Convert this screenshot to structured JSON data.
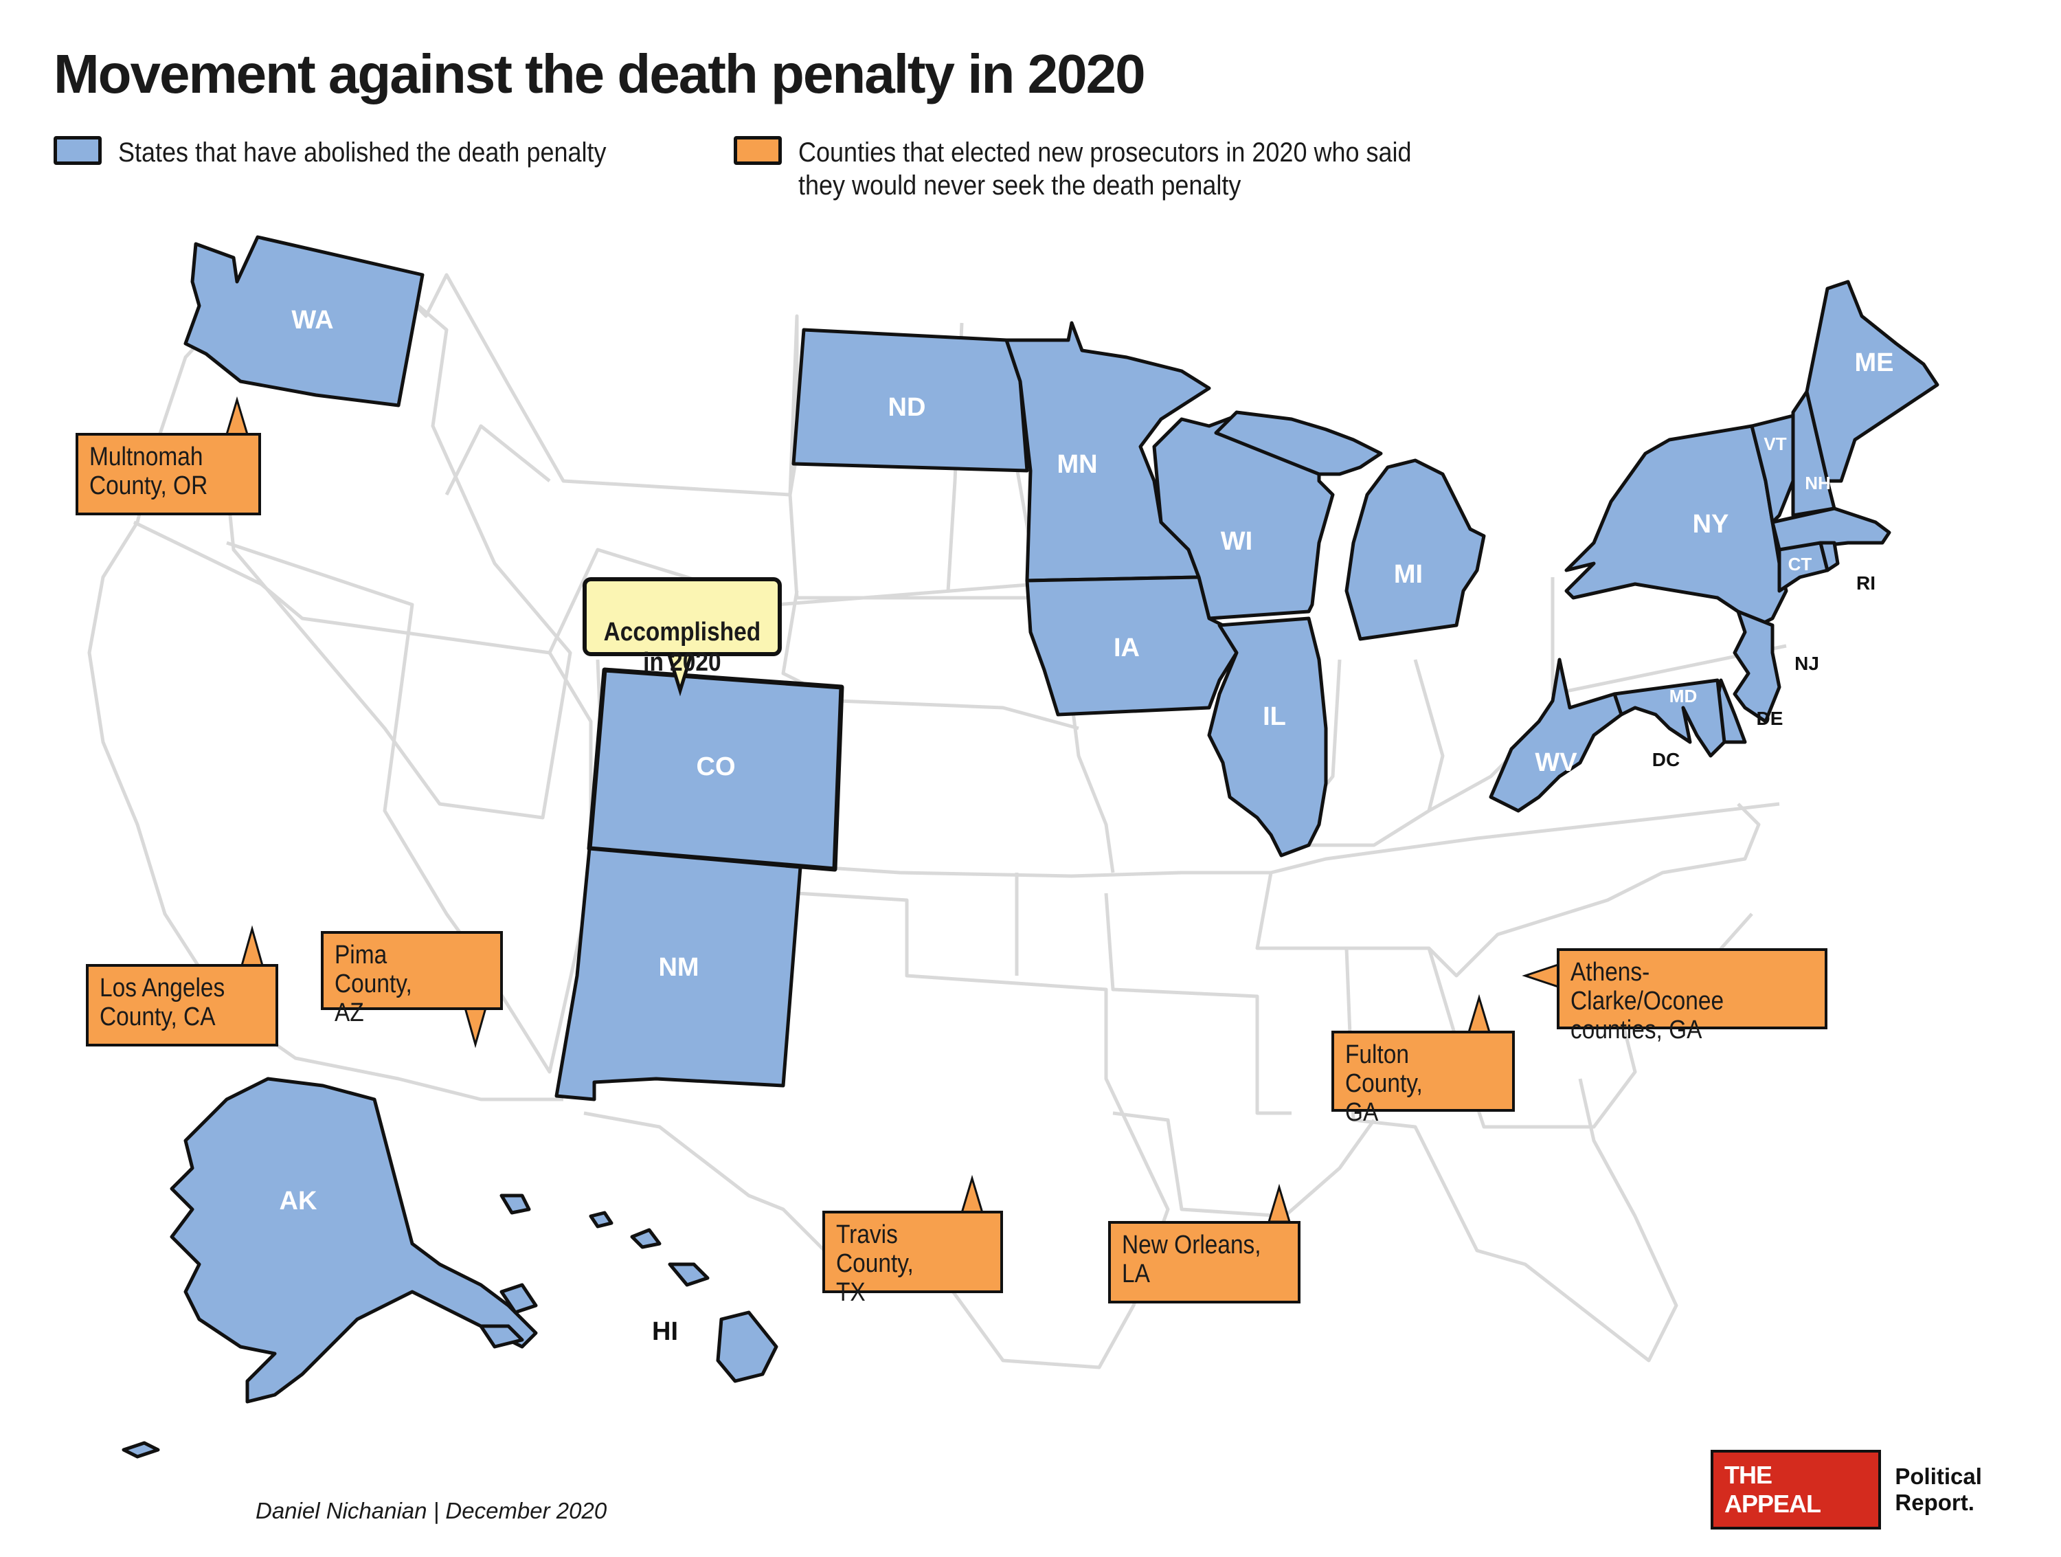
{
  "title": "Movement against the death penalty in 2020",
  "legend": {
    "abolished": {
      "label": "States that have abolished the death penalty",
      "color": "#8eb1de"
    },
    "prosecutors": {
      "label": "Counties that elected new prosecutors in 2020 who said they would never seek the death penalty",
      "color": "#f7a04d"
    }
  },
  "states_abolished": [
    "WA",
    "ND",
    "MN",
    "WI",
    "MI",
    "IA",
    "IL",
    "CO",
    "NM",
    "NY",
    "VT",
    "NH",
    "ME",
    "CT",
    "NJ",
    "MD",
    "DE",
    "WV",
    "AK",
    "HI"
  ],
  "state_labels": {
    "WA": "WA",
    "ND": "ND",
    "MN": "MN",
    "WI": "WI",
    "MI": "MI",
    "IA": "IA",
    "IL": "IL",
    "CO": "CO",
    "NM": "NM",
    "NY": "NY",
    "VT": "VT",
    "NH": "NH",
    "ME": "ME",
    "CT": "CT",
    "RI": "RI",
    "NJ": "NJ",
    "MD": "MD",
    "DE": "DE",
    "DC": "DC",
    "WV": "WV",
    "AK": "AK",
    "HI": "HI"
  },
  "accomplished": "Accomplished\nin 2020",
  "counties": [
    {
      "id": "multnomah",
      "label": "Multnomah\nCounty, OR"
    },
    {
      "id": "los-angeles",
      "label": "Los Angeles\nCounty, CA"
    },
    {
      "id": "pima",
      "label": "Pima County,\nAZ"
    },
    {
      "id": "travis",
      "label": "Travis County,\nTX"
    },
    {
      "id": "new-orleans",
      "label": "New Orleans,\nLA"
    },
    {
      "id": "fulton",
      "label": "Fulton County,\nGA"
    },
    {
      "id": "athens",
      "label": "Athens-Clarke/Oconee\ncounties, GA"
    }
  ],
  "credit": "Daniel Nichanian | December 2020",
  "logo": {
    "box": "THE APPEAL",
    "text": "Political Report."
  }
}
